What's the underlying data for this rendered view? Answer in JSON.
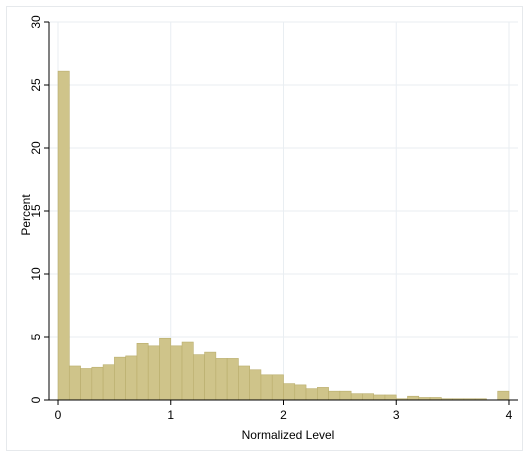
{
  "chart_data": {
    "type": "bar",
    "xlabel": "Normalized Level",
    "ylabel": "Percent",
    "xlim": [
      -0.08,
      4.08
    ],
    "ylim": [
      0,
      30
    ],
    "x_ticks": [
      "0",
      "1",
      "2",
      "3",
      "4"
    ],
    "y_ticks": [
      "0",
      "5",
      "10",
      "15",
      "20",
      "25",
      "30"
    ],
    "grid": "both",
    "bin_width": 0.1,
    "bin_starts": [
      0.0,
      0.1,
      0.2,
      0.3,
      0.4,
      0.5,
      0.6,
      0.7,
      0.8,
      0.9,
      1.0,
      1.1,
      1.2,
      1.3,
      1.4,
      1.5,
      1.6,
      1.7,
      1.8,
      1.9,
      2.0,
      2.1,
      2.2,
      2.3,
      2.4,
      2.5,
      2.6,
      2.7,
      2.8,
      2.9,
      3.0,
      3.1,
      3.2,
      3.3,
      3.4,
      3.5,
      3.6,
      3.7,
      3.8,
      3.9
    ],
    "values": [
      26.1,
      2.7,
      2.5,
      2.6,
      2.8,
      3.4,
      3.5,
      4.5,
      4.3,
      4.9,
      4.3,
      4.6,
      3.6,
      3.8,
      3.3,
      3.3,
      2.7,
      2.4,
      2.0,
      2.0,
      1.3,
      1.2,
      0.9,
      1.0,
      0.7,
      0.7,
      0.5,
      0.5,
      0.4,
      0.4,
      0.1,
      0.3,
      0.2,
      0.2,
      0.1,
      0.1,
      0.1,
      0.1,
      0.0,
      0.7
    ],
    "bar_color": "#cfc48a",
    "bar_edge_color": "#b9ad6c",
    "grid_color": "#e9eef2",
    "background": "#ffffff"
  }
}
